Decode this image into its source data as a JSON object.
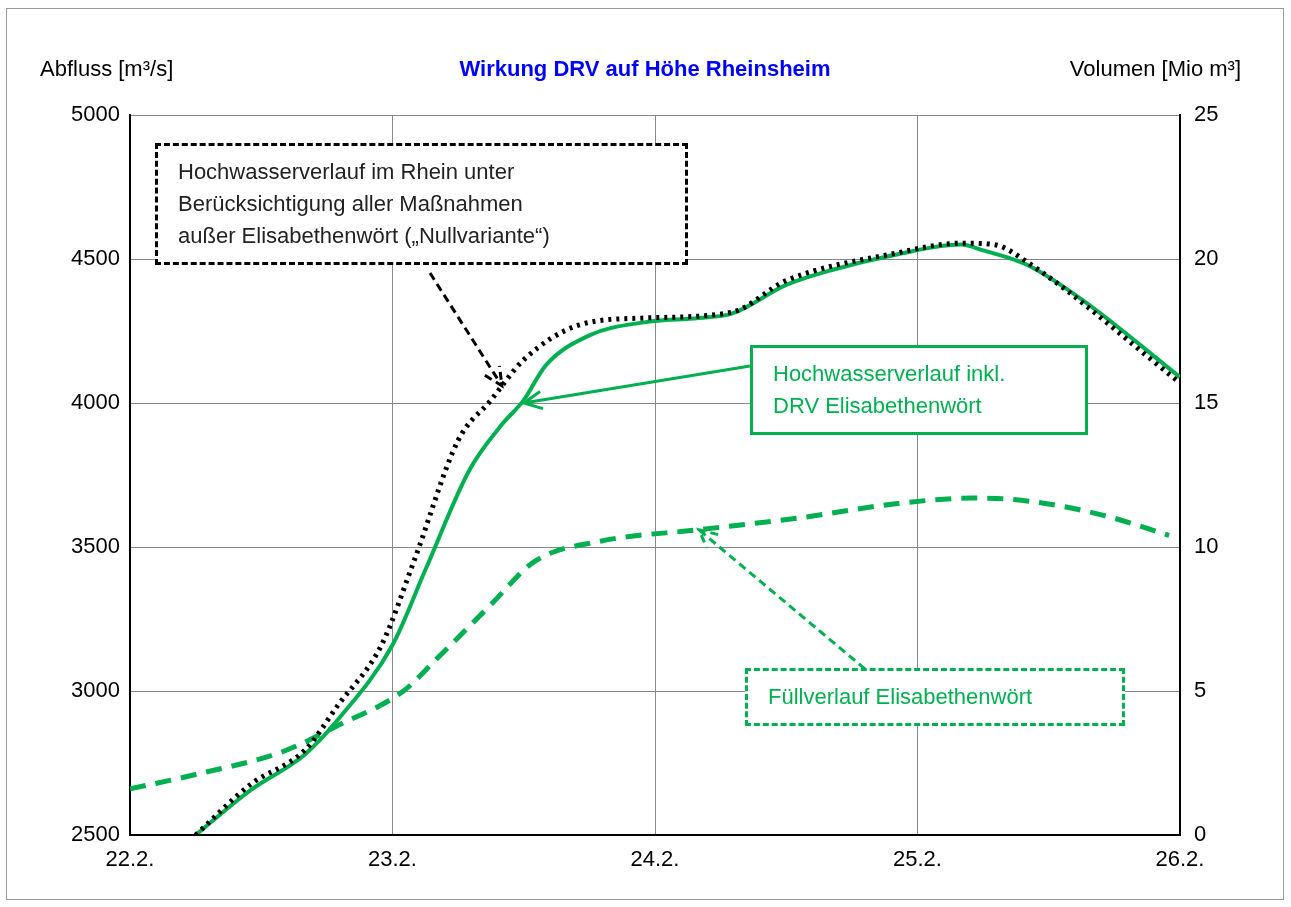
{
  "chart_data": {
    "type": "line",
    "title": "Wirkung DRV auf Höhe Rheinsheim",
    "ylabel": "Abfluss [m³/s]",
    "y2label": "Volumen [Mio m³]",
    "xlim": [
      "--02-22",
      "--02-26"
    ],
    "xticks": [
      {
        "value": "--02-22",
        "label": "22.2."
      },
      {
        "value": "--02-23",
        "label": "23.2."
      },
      {
        "value": "--02-24",
        "label": "24.2."
      },
      {
        "value": "--02-25",
        "label": "25.2."
      },
      {
        "value": "--02-26",
        "label": "26.2."
      }
    ],
    "ylim": [
      2500,
      5000
    ],
    "yticks": [
      2500,
      3000,
      3500,
      4000,
      4500,
      5000
    ],
    "y2lim": [
      0,
      25
    ],
    "y2ticks": [
      0,
      5,
      10,
      15,
      20,
      25
    ],
    "grid": true,
    "legend": false,
    "marker": "none",
    "series": [
      {
        "color": "#000000",
        "line_style": "dotted",
        "x": [
          "--02-22T06:00",
          "--02-22T11:00",
          "--02-22T16:00",
          "--02-22T19:00",
          "--02-22T23:00",
          "--02-23T02:00",
          "--02-23T06:00",
          "--02-23T09:00",
          "--02-23T12:00",
          "--02-23T17:00",
          "--02-23T23:00",
          "--02-24T07:00",
          "--02-24T12:00",
          "--02-24T22:00",
          "--02-25T04:00",
          "--02-25T07:00",
          "--02-25T10:00",
          "--02-26T00:00"
        ],
        "values": [
          2500,
          2675,
          2795,
          2950,
          3160,
          3455,
          3870,
          4010,
          4150,
          4270,
          4295,
          4315,
          4425,
          4520,
          4555,
          4550,
          4490,
          4070
        ]
      },
      {
        "color": "#00b050",
        "line_style": "solid",
        "x": [
          "--02-22T06:00",
          "--02-22T11:00",
          "--02-22T16:00",
          "--02-22T19:00",
          "--02-23T00:00",
          "--02-23T03:00",
          "--02-23T07:00",
          "--02-23T10:00",
          "--02-23T12:00",
          "--02-23T14:00",
          "--02-23T18:00",
          "--02-23T23:00",
          "--02-24T04:00",
          "--02-24T07:00",
          "--02-24T12:00",
          "--02-24T16:00",
          "--02-24T22:00",
          "--02-25T04:00",
          "--02-25T06:00",
          "--02-25T10:00",
          "--02-25T15:00",
          "--02-26T00:00"
        ],
        "values": [
          2500,
          2655,
          2780,
          2900,
          3160,
          3420,
          3765,
          3925,
          4010,
          4130,
          4235,
          4280,
          4295,
          4310,
          4410,
          4460,
          4515,
          4550,
          4530,
          4480,
          4360,
          4090
        ]
      },
      {
        "color": "#00b050",
        "line_style": "dashed",
        "axis": "y2",
        "x": [
          "--02-22T00:00",
          "--02-22T06:00",
          "--02-22T14:00",
          "--02-22T19:00",
          "--02-23T01:00",
          "--02-23T04:00",
          "--02-23T09:00",
          "--02-23T13:00",
          "--02-23T19:00",
          "--02-24T04:00",
          "--02-24T13:00",
          "--02-24T22:00",
          "--02-25T05:00",
          "--02-25T10:00",
          "--02-25T17:00",
          "--02-25T23:00"
        ],
        "values": [
          1.6,
          2.1,
          2.9,
          3.8,
          5,
          6.1,
          8,
          9.5,
          10.2,
          10.6,
          11,
          11.5,
          11.7,
          11.6,
          11.1,
          10.4
        ]
      }
    ],
    "annotations": [
      {
        "text": "Hochwasserverlauf im Rhein unter Berücksichtigung aller Maßnahmen außer Elisabethenwört („Nullvariante“)",
        "x": "--02-23T10:00",
        "y": 4060
      },
      {
        "text": "Hochwasserverlauf inkl. DRV Elisabethenwört",
        "x": "--02-23T12:00",
        "y": 4000
      },
      {
        "text": "Füllverlauf Elisabethenwört",
        "x": "--02-24T04:00",
        "y": 3560
      }
    ]
  }
}
